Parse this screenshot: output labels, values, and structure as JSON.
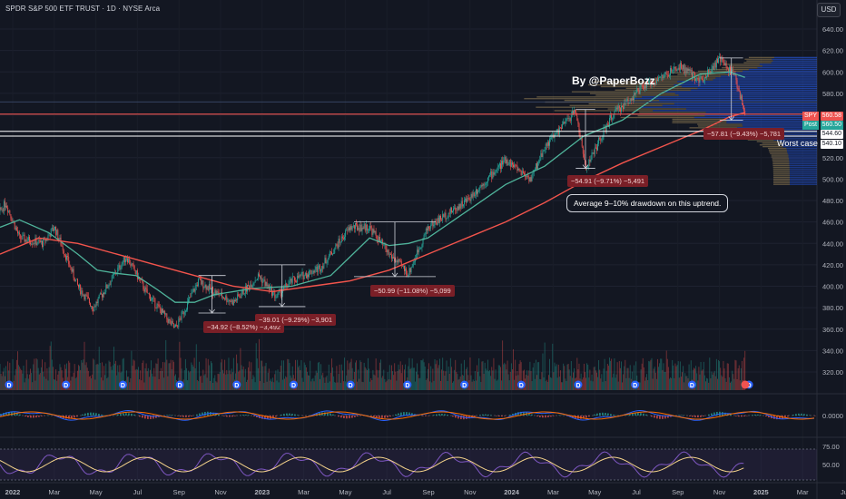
{
  "header": {
    "title": "SPDR S&P 500 ETF TRUST · 1D · NYSE Arca",
    "currency": "USD"
  },
  "annotations": {
    "author": "By @PaperBozz",
    "worst_case": "Worst case",
    "note": "Average 9–10% drawdown on this uptrend."
  },
  "price_tags": {
    "spy_label": "SPY",
    "spy_price": "560.58",
    "post_label": "Post",
    "post_price": "560.50",
    "level_1": "544.60",
    "level_2": "540.10"
  },
  "colors": {
    "background": "#131722",
    "up": "#26a69a",
    "down": "#ef5350",
    "ma_fast": "#4fb39a",
    "ma_slow": "#f2544c",
    "macd": "#2962ff",
    "signal": "#ff6d00",
    "rsi": "#7e57c2",
    "rsi_ma": "#f5d38b"
  },
  "chart_data": {
    "type": "candlestick",
    "title": "SPDR S&P 500 ETF TRUST · 1D · NYSE Arca",
    "ylabel": "USD",
    "ylim": [
      300,
      650
    ],
    "y_ticks": [
      320,
      340,
      360,
      380,
      400,
      420,
      440,
      460,
      480,
      500,
      520,
      540,
      560,
      580,
      600,
      620,
      640
    ],
    "x_ticks": [
      "2022",
      "Mar",
      "May",
      "Jul",
      "Sep",
      "Nov",
      "2023",
      "Mar",
      "May",
      "Jul",
      "Sep",
      "Nov",
      "2024",
      "Mar",
      "May",
      "Jul",
      "Sep",
      "Nov",
      "2025",
      "Mar",
      "Ju"
    ],
    "price_path": [
      {
        "t": 0,
        "price": 470
      },
      {
        "t": 0.3,
        "price": 478
      },
      {
        "t": 1,
        "price": 445
      },
      {
        "t": 2.2,
        "price": 440
      },
      {
        "t": 2.8,
        "price": 455
      },
      {
        "t": 4,
        "price": 400
      },
      {
        "t": 4.8,
        "price": 380
      },
      {
        "t": 6.5,
        "price": 428
      },
      {
        "t": 7.5,
        "price": 395
      },
      {
        "t": 9,
        "price": 360
      },
      {
        "t": 10.2,
        "price": 405
      },
      {
        "t": 11,
        "price": 395
      },
      {
        "t": 12,
        "price": 385
      },
      {
        "t": 13.3,
        "price": 410
      },
      {
        "t": 14.2,
        "price": 390
      },
      {
        "t": 15,
        "price": 405
      },
      {
        "t": 16.5,
        "price": 418
      },
      {
        "t": 18,
        "price": 455
      },
      {
        "t": 19,
        "price": 455
      },
      {
        "t": 20,
        "price": 430
      },
      {
        "t": 21,
        "price": 412
      },
      {
        "t": 22,
        "price": 455
      },
      {
        "t": 24,
        "price": 480
      },
      {
        "t": 26,
        "price": 518
      },
      {
        "t": 27.3,
        "price": 500
      },
      {
        "t": 28,
        "price": 530
      },
      {
        "t": 29.6,
        "price": 564
      },
      {
        "t": 30.1,
        "price": 510
      },
      {
        "t": 31.5,
        "price": 560
      },
      {
        "t": 33,
        "price": 585
      },
      {
        "t": 35,
        "price": 605
      },
      {
        "t": 36,
        "price": 592
      },
      {
        "t": 37,
        "price": 612
      },
      {
        "t": 37.8,
        "price": 595
      },
      {
        "t": 38.3,
        "price": 560
      }
    ],
    "moving_average_fast": [
      {
        "t": 0,
        "price": 455
      },
      {
        "t": 1,
        "price": 462
      },
      {
        "t": 2.5,
        "price": 450
      },
      {
        "t": 4,
        "price": 430
      },
      {
        "t": 5,
        "price": 415
      },
      {
        "t": 6,
        "price": 412
      },
      {
        "t": 7,
        "price": 410
      },
      {
        "t": 8,
        "price": 398
      },
      {
        "t": 9,
        "price": 385
      },
      {
        "t": 10,
        "price": 385
      },
      {
        "t": 11,
        "price": 392
      },
      {
        "t": 13,
        "price": 398
      },
      {
        "t": 15,
        "price": 400
      },
      {
        "t": 17,
        "price": 410
      },
      {
        "t": 19,
        "price": 445
      },
      {
        "t": 20,
        "price": 438
      },
      {
        "t": 21,
        "price": 440
      },
      {
        "t": 22,
        "price": 445
      },
      {
        "t": 24,
        "price": 470
      },
      {
        "t": 26,
        "price": 495
      },
      {
        "t": 28,
        "price": 512
      },
      {
        "t": 30,
        "price": 540
      },
      {
        "t": 32,
        "price": 555
      },
      {
        "t": 34,
        "price": 580
      },
      {
        "t": 36,
        "price": 598
      },
      {
        "t": 37.5,
        "price": 600
      },
      {
        "t": 38.3,
        "price": 595
      }
    ],
    "moving_average_slow": [
      {
        "t": 0,
        "price": 430
      },
      {
        "t": 2,
        "price": 445
      },
      {
        "t": 4,
        "price": 440
      },
      {
        "t": 6,
        "price": 430
      },
      {
        "t": 8,
        "price": 420
      },
      {
        "t": 10,
        "price": 410
      },
      {
        "t": 12,
        "price": 400
      },
      {
        "t": 14,
        "price": 395
      },
      {
        "t": 16,
        "price": 400
      },
      {
        "t": 18,
        "price": 405
      },
      {
        "t": 20,
        "price": 415
      },
      {
        "t": 22,
        "price": 430
      },
      {
        "t": 24,
        "price": 445
      },
      {
        "t": 26,
        "price": 460
      },
      {
        "t": 28,
        "price": 478
      },
      {
        "t": 30,
        "price": 498
      },
      {
        "t": 32,
        "price": 515
      },
      {
        "t": 34,
        "price": 530
      },
      {
        "t": 36,
        "price": 545
      },
      {
        "t": 37.5,
        "price": 558
      },
      {
        "t": 38.3,
        "price": 562
      }
    ],
    "horizontal_levels": [
      {
        "price": 560.58,
        "color": "#ef5350"
      },
      {
        "price": 544.6,
        "color": "#ffffff"
      },
      {
        "price": 540.1,
        "color": "#ffffff"
      }
    ],
    "drawdowns": [
      {
        "label": "−34.92 (−8.52%) −3,492",
        "t_start": 10.2,
        "t_end": 11.6,
        "from": 410,
        "to": 375
      },
      {
        "label": "−39.01 (−9.29%) −3,901",
        "t_start": 13.3,
        "t_end": 15.7,
        "from": 420,
        "to": 381
      },
      {
        "label": "−50.99 (−11.08%) −5,099",
        "t_start": 18.2,
        "t_end": 22.4,
        "from": 460,
        "to": 409
      },
      {
        "label": "−54.91 (−9.71%) −5,491",
        "t_start": 29.6,
        "t_end": 30.6,
        "from": 565,
        "to": 510
      },
      {
        "label": "−57.81 (−9.43%) −5,781",
        "t_start": 37.0,
        "t_end": 38.2,
        "from": 613,
        "to": 555
      }
    ],
    "volume_profile_zone": [
      495,
      615
    ],
    "events": {
      "dividend_markers": 14,
      "dividend_symbol": "D"
    },
    "indicators": {
      "macd": {
        "zero_line": "0.0000"
      },
      "rsi": {
        "ticks": [
          "75.00",
          "50.00"
        ],
        "upper": 70,
        "lower": 30
      }
    }
  }
}
